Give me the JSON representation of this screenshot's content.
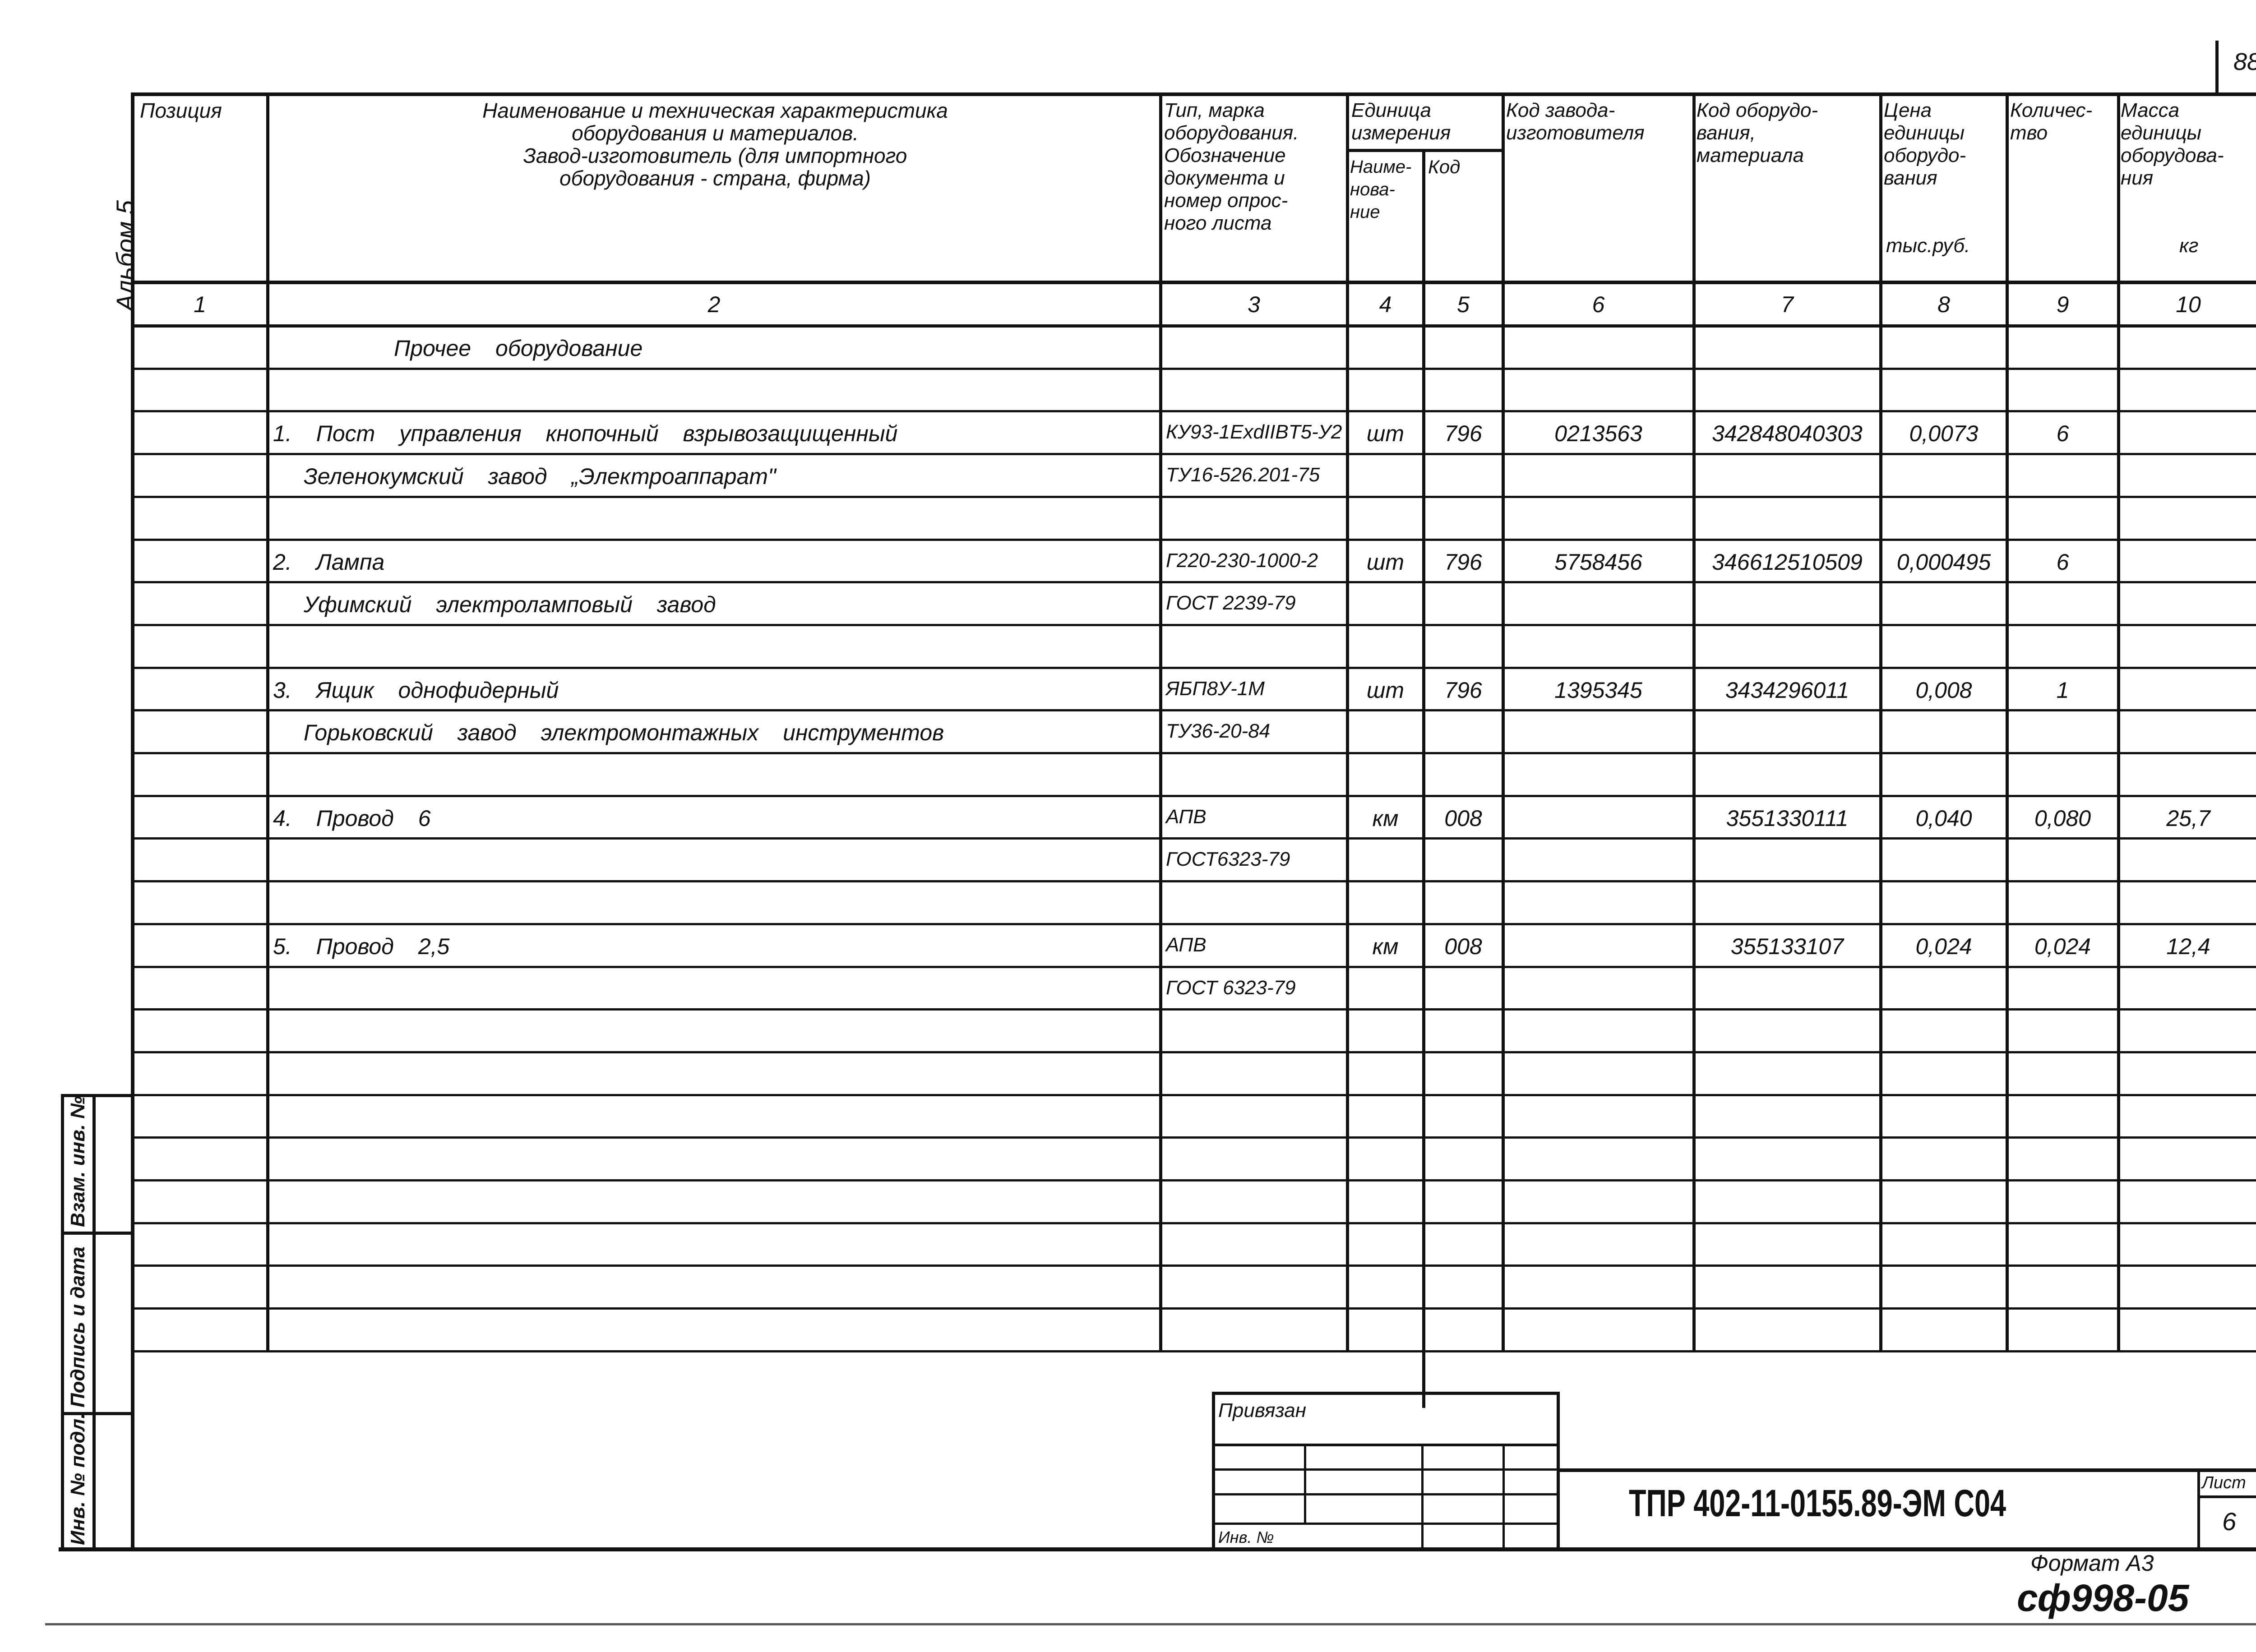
{
  "page_number": "88",
  "album_label": "Альбом 5",
  "header": {
    "col1": "Позиция",
    "col2": "Наименование и техническая характеристика\nоборудования и материалов.\nЗавод-изготовитель (для импортного\nоборудования - страна, фирма)",
    "col3": "Тип, марка\nоборудования.\nОбозначение\nдокумента и\nномер опрос-\nного листа",
    "unit_group": "Единица\nизмерения",
    "col4": "Наиме-\nнова-\nние",
    "col5": "Код",
    "col6": "Код завода-\nизготовителя",
    "col7": "Код оборудо-\nвания,\nматериала",
    "col8": "Цена\nединицы\nоборудо-\nвания",
    "col8_unit": "тыс.руб.",
    "col9": "Количес-\nтво",
    "col10": "Масса\nединицы\nоборудова-\nния",
    "col10_unit": "кг"
  },
  "column_numbers": [
    "1",
    "2",
    "3",
    "4",
    "5",
    "6",
    "7",
    "8",
    "9",
    "10"
  ],
  "rows": [
    [
      "",
      "Прочее оборудование",
      "",
      "",
      "",
      "",
      "",
      "",
      "",
      ""
    ],
    [
      "",
      "",
      "",
      "",
      "",
      "",
      "",
      "",
      "",
      ""
    ],
    [
      "",
      "1. Пост управления кнопочный взрывозащищенный",
      "КУ93-1ExdIIBT5-У2",
      "шт",
      "796",
      "0213563",
      "342848040303",
      "0,0073",
      "6",
      ""
    ],
    [
      "",
      "Зеленокумский завод „Электроаппарат\"",
      "ТУ16-526.201-75",
      "",
      "",
      "",
      "",
      "",
      "",
      ""
    ],
    [
      "",
      "",
      "",
      "",
      "",
      "",
      "",
      "",
      "",
      ""
    ],
    [
      "",
      "2. Лампа",
      "Г220-230-1000-2",
      "шт",
      "796",
      "5758456",
      "346612510509",
      "0,000495",
      "6",
      ""
    ],
    [
      "",
      "Уфимский электроламповый завод",
      "ГОСТ 2239-79",
      "",
      "",
      "",
      "",
      "",
      "",
      ""
    ],
    [
      "",
      "",
      "",
      "",
      "",
      "",
      "",
      "",
      "",
      ""
    ],
    [
      "",
      "3. Ящик однофидерный",
      "ЯБП8У-1М",
      "шт",
      "796",
      "1395345",
      "3434296011",
      "0,008",
      "1",
      ""
    ],
    [
      "",
      "Горьковский завод электромонтажных инструментов",
      "ТУ36-20-84",
      "",
      "",
      "",
      "",
      "",
      "",
      ""
    ],
    [
      "",
      "",
      "",
      "",
      "",
      "",
      "",
      "",
      "",
      ""
    ],
    [
      "",
      "4. Провод 6",
      "АПВ",
      "км",
      "008",
      "",
      "3551330111",
      "0,040",
      "0,080",
      "25,7"
    ],
    [
      "",
      "",
      "ГОСТ6323-79",
      "",
      "",
      "",
      "",
      "",
      "",
      ""
    ],
    [
      "",
      "",
      "",
      "",
      "",
      "",
      "",
      "",
      "",
      ""
    ],
    [
      "",
      "5. Провод 2,5",
      "АПВ",
      "км",
      "008",
      "",
      "355133107",
      "0,024",
      "0,024",
      "12,4"
    ],
    [
      "",
      "",
      "ГОСТ 6323-79",
      "",
      "",
      "",
      "",
      "",
      "",
      ""
    ]
  ],
  "side_stamp": {
    "inv_podl": "Инв. № подл.",
    "podpis_data": "Подпись и дата",
    "vzam_inv": "Взам. инв. №"
  },
  "title_block": {
    "privyazan": "Привязан",
    "inv_no": "Инв. №",
    "designation": "ТПР 402-11-0155.89-ЭМ С04",
    "sheet_label": "Лист",
    "sheet_number": "6"
  },
  "format_label": "Формат А3",
  "stamp_code": "сф998-05"
}
